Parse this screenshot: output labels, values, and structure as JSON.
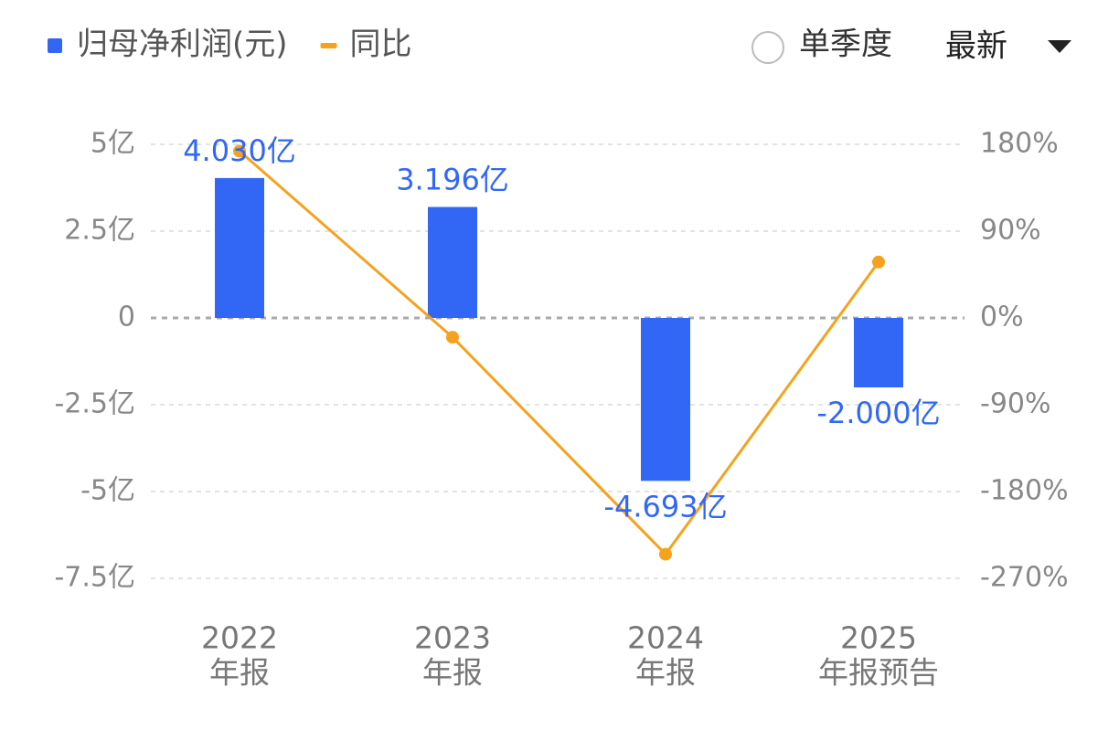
{
  "chart_data": {
    "type": "bar-line",
    "categories": [
      [
        "2022",
        "年报"
      ],
      [
        "2023",
        "年报"
      ],
      [
        "2024",
        "年报"
      ],
      [
        "2025",
        "年报预告"
      ]
    ],
    "series": [
      {
        "name": "归母净利润(元)",
        "type": "bar",
        "color": "#3267f6",
        "values": [
          4.03,
          3.196,
          -4.693,
          -2.0
        ],
        "value_labels": [
          "4.030亿",
          "3.196亿",
          "-4.693亿",
          "-2.000亿"
        ]
      },
      {
        "name": "同比",
        "type": "line",
        "color": "#f5a21e",
        "axis": "y2",
        "values": [
          173,
          -20,
          -245,
          58
        ]
      }
    ],
    "ylim": [
      -7.5,
      5
    ],
    "yticks": [
      {
        "value": 5,
        "label": "5亿"
      },
      {
        "value": 2.5,
        "label": "2.5亿"
      },
      0,
      {
        "value": -2.5,
        "label": "-2.5亿"
      },
      {
        "value": -5,
        "label": "-5亿"
      },
      {
        "value": -7.5,
        "label": "-7.5亿"
      }
    ],
    "y2lim": [
      -270,
      180
    ],
    "y2ticks": [
      {
        "value": 180,
        "label": "180%"
      },
      {
        "value": 90,
        "label": "90%"
      },
      {
        "value": 0,
        "label": "0%"
      },
      {
        "value": -90,
        "label": "-90%"
      },
      {
        "value": -180,
        "label": "-180%"
      },
      {
        "value": -270,
        "label": "-270%"
      }
    ],
    "grid": true
  },
  "controls": {
    "toggle": "单季度",
    "period": "最新"
  }
}
